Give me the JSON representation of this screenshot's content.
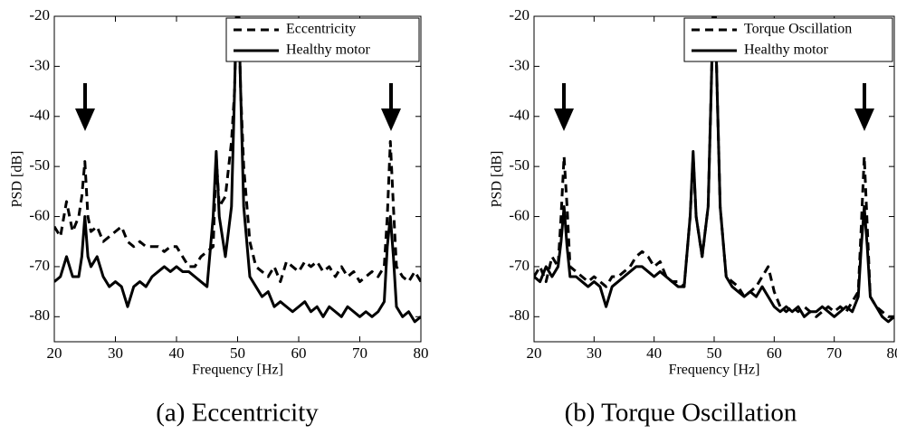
{
  "chart_data": [
    {
      "type": "line",
      "caption": "(a) Eccentricity",
      "xlabel": "Frequency [Hz]",
      "ylabel": "PSD [dB]",
      "xlim": [
        20,
        80
      ],
      "ylim": [
        -85,
        -20
      ],
      "xticks": [
        20,
        30,
        40,
        50,
        60,
        70,
        80
      ],
      "yticks": [
        -20,
        -30,
        -40,
        -50,
        -60,
        -70,
        -80
      ],
      "legend": "upper right",
      "x": [
        20,
        21,
        22,
        23,
        24,
        24.5,
        25,
        25.5,
        26,
        27,
        28,
        29,
        30,
        31,
        32,
        33,
        34,
        35,
        36,
        37,
        38,
        39,
        40,
        41,
        42,
        43,
        44,
        45,
        46,
        46.5,
        47,
        48,
        49,
        49.5,
        50,
        50.5,
        51,
        52,
        53,
        54,
        55,
        56,
        57,
        58,
        59,
        60,
        61,
        62,
        63,
        64,
        65,
        66,
        67,
        68,
        69,
        70,
        71,
        72,
        73,
        74,
        74.5,
        75,
        75.5,
        76,
        77,
        78,
        79,
        80
      ],
      "series": [
        {
          "name": "Eccentricity",
          "color": "#000000",
          "linestyle": "dashed",
          "values": [
            -62,
            -64,
            -57,
            -63,
            -60,
            -56,
            -49,
            -60,
            -63,
            -62,
            -65,
            -64,
            -63,
            -62,
            -65,
            -66,
            -65,
            -66,
            -66,
            -66,
            -67,
            -66,
            -66,
            -68,
            -70,
            -70,
            -68,
            -67,
            -66,
            -48,
            -58,
            -56,
            -45,
            -35,
            -10,
            -35,
            -50,
            -65,
            -70,
            -71,
            -72,
            -70,
            -73,
            -69,
            -70,
            -71,
            -69,
            -70,
            -69,
            -71,
            -70,
            -72,
            -70,
            -72,
            -71,
            -73,
            -72,
            -71,
            -72,
            -70,
            -60,
            -45,
            -58,
            -70,
            -72,
            -73,
            -71,
            -73
          ]
        },
        {
          "name": "Healthy motor",
          "color": "#000000",
          "linestyle": "solid",
          "values": [
            -73,
            -72,
            -68,
            -72,
            -72,
            -68,
            -60,
            -68,
            -70,
            -68,
            -72,
            -74,
            -73,
            -74,
            -78,
            -74,
            -73,
            -74,
            -72,
            -71,
            -70,
            -71,
            -70,
            -71,
            -71,
            -72,
            -73,
            -74,
            -60,
            -47,
            -60,
            -68,
            -58,
            -35,
            -10,
            -35,
            -58,
            -72,
            -74,
            -76,
            -75,
            -78,
            -77,
            -78,
            -79,
            -78,
            -77,
            -79,
            -78,
            -80,
            -78,
            -79,
            -80,
            -78,
            -79,
            -80,
            -79,
            -80,
            -79,
            -77,
            -66,
            -60,
            -68,
            -78,
            -80,
            -79,
            -81,
            -80
          ]
        }
      ]
    },
    {
      "type": "line",
      "caption": "(b) Torque Oscillation",
      "xlabel": "Frequency [Hz]",
      "ylabel": "PSD [dB]",
      "xlim": [
        20,
        80
      ],
      "ylim": [
        -85,
        -20
      ],
      "xticks": [
        20,
        30,
        40,
        50,
        60,
        70,
        80
      ],
      "yticks": [
        -20,
        -30,
        -40,
        -50,
        -60,
        -70,
        -80
      ],
      "legend": "upper right",
      "x": [
        20,
        21,
        22,
        23,
        24,
        24.5,
        25,
        25.5,
        26,
        27,
        28,
        29,
        30,
        31,
        32,
        33,
        34,
        35,
        36,
        37,
        38,
        39,
        40,
        41,
        42,
        43,
        44,
        45,
        46,
        46.5,
        47,
        48,
        49,
        49.5,
        50,
        50.5,
        51,
        52,
        53,
        54,
        55,
        56,
        57,
        58,
        59,
        60,
        61,
        62,
        63,
        64,
        65,
        66,
        67,
        68,
        69,
        70,
        71,
        72,
        73,
        74,
        74.5,
        75,
        75.5,
        76,
        77,
        78,
        79,
        80
      ],
      "series": [
        {
          "name": "Torque Oscillation",
          "color": "#000000",
          "linestyle": "dashed",
          "values": [
            -72,
            -70,
            -73,
            -68,
            -70,
            -60,
            -48,
            -58,
            -70,
            -71,
            -72,
            -73,
            -72,
            -73,
            -74,
            -72,
            -72,
            -71,
            -70,
            -68,
            -67,
            -68,
            -70,
            -69,
            -72,
            -73,
            -73,
            -74,
            -60,
            -48,
            -60,
            -68,
            -58,
            -35,
            -10,
            -35,
            -58,
            -72,
            -73,
            -74,
            -76,
            -75,
            -74,
            -72,
            -70,
            -75,
            -78,
            -79,
            -78,
            -79,
            -78,
            -79,
            -80,
            -79,
            -78,
            -79,
            -78,
            -79,
            -77,
            -75,
            -62,
            -48,
            -62,
            -76,
            -78,
            -79,
            -80,
            -80
          ]
        },
        {
          "name": "Healthy motor",
          "color": "#000000",
          "linestyle": "solid",
          "values": [
            -72,
            -73,
            -70,
            -72,
            -70,
            -65,
            -58,
            -66,
            -72,
            -72,
            -73,
            -74,
            -73,
            -74,
            -78,
            -74,
            -73,
            -72,
            -71,
            -70,
            -70,
            -71,
            -72,
            -71,
            -72,
            -73,
            -74,
            -74,
            -60,
            -47,
            -60,
            -68,
            -58,
            -35,
            -10,
            -35,
            -58,
            -72,
            -74,
            -75,
            -76,
            -75,
            -76,
            -74,
            -76,
            -78,
            -79,
            -78,
            -79,
            -78,
            -80,
            -79,
            -79,
            -78,
            -79,
            -80,
            -79,
            -78,
            -79,
            -76,
            -66,
            -58,
            -66,
            -76,
            -78,
            -80,
            -81,
            -80
          ]
        }
      ]
    }
  ]
}
